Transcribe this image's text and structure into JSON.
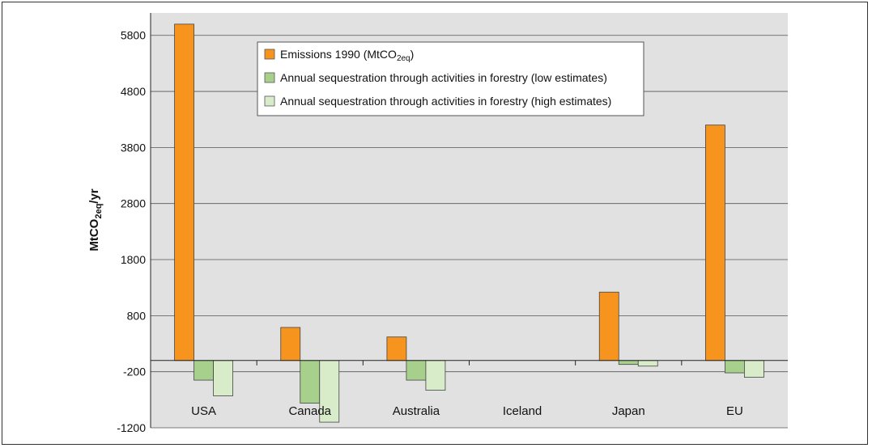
{
  "chart_data": {
    "type": "bar",
    "title": "",
    "xlabel": "",
    "ylabel": "MtCO",
    "ylabel_sub": "2eq",
    "ylabel_suffix": "/yr",
    "ylim": [
      -1200,
      6200
    ],
    "yticks": [
      5800,
      4800,
      3800,
      2800,
      1800,
      800,
      -200,
      -1200
    ],
    "ytick_labels": [
      "5800",
      "4800",
      "3800",
      "2800",
      "1800",
      "800",
      "-200",
      "-1200"
    ],
    "grid": true,
    "legend_position": "top-center",
    "categories": [
      "USA",
      "Canada",
      "Australia",
      "Iceland",
      "Japan",
      "EU"
    ],
    "series": [
      {
        "name": "Emissions 1990 (MtCO",
        "name_sub": "2eq",
        "name_suffix": ")",
        "color": "#f7941d",
        "values": [
          6000,
          590,
          420,
          0,
          1220,
          4200
        ]
      },
      {
        "name": "Annual sequestration through activities in forestry (low estimates)",
        "color": "#a7d08c",
        "values": [
          -350,
          -760,
          -350,
          0,
          -70,
          -220
        ]
      },
      {
        "name": "Annual sequestration through activities in forestry (high estimates)",
        "color": "#d9ecc9",
        "values": [
          -630,
          -1100,
          -530,
          0,
          -100,
          -300
        ]
      }
    ]
  }
}
